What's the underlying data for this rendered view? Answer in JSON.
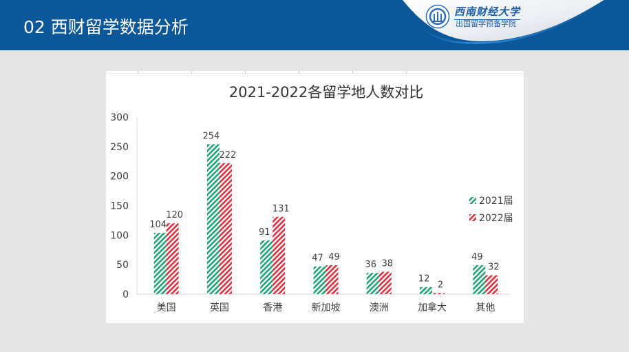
{
  "header": {
    "title": "02 西财留学数据分析",
    "logo_name": "西南财经大学",
    "logo_subtitle": "出国留学预备学院",
    "logo_icon": "university-emblem-icon"
  },
  "colors": {
    "header_bg": "#0a5799",
    "page_bg": "#e5e5e5",
    "series_2021": "#1fa374",
    "series_2022": "#d9313f",
    "text": "#404040",
    "title_text": "#333333"
  },
  "chart_data": {
    "type": "bar",
    "title": "2021-2022各留学地人数对比",
    "xlabel": "",
    "ylabel": "",
    "categories": [
      "美国",
      "英国",
      "香港",
      "新加坡",
      "澳洲",
      "加拿大",
      "其他"
    ],
    "series": [
      {
        "name": "2021届",
        "color": "#1fa374",
        "pattern": "diagonal-hatch",
        "values": [
          104,
          254,
          91,
          47,
          36,
          12,
          49
        ]
      },
      {
        "name": "2022届",
        "color": "#d9313f",
        "pattern": "diagonal-hatch",
        "values": [
          120,
          222,
          131,
          49,
          38,
          2,
          32
        ]
      }
    ],
    "ylim": [
      0,
      300
    ],
    "yticks": [
      0,
      50,
      100,
      150,
      200,
      250,
      300
    ],
    "grid": false,
    "legend": "right",
    "data_labels": true
  }
}
